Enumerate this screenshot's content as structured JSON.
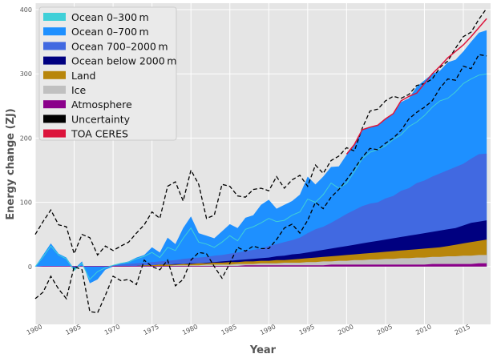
{
  "chart_data": {
    "type": "area",
    "xlabel": "Year",
    "ylabel": "Energy change (ZJ)",
    "xlim": [
      1960,
      2018.5
    ],
    "ylim": [
      -90,
      410
    ],
    "x_ticks": [
      1960,
      1965,
      1970,
      1975,
      1980,
      1985,
      1990,
      1995,
      2000,
      2005,
      2010,
      2015
    ],
    "y_ticks": [
      0,
      100,
      200,
      300,
      400
    ],
    "grid": true,
    "legend_position": "top-left",
    "stack_years": [
      1960,
      1961,
      1962,
      1963,
      1964,
      1965,
      1966,
      1967,
      1968,
      1969,
      1970,
      1971,
      1972,
      1973,
      1974,
      1975,
      1976,
      1977,
      1978,
      1979,
      1980,
      1981,
      1982,
      1983,
      1984,
      1985,
      1986,
      1987,
      1988,
      1989,
      1990,
      1991,
      1992,
      1993,
      1994,
      1995,
      1996,
      1997,
      1998,
      1999,
      2000,
      2001,
      2002,
      2003,
      2004,
      2005,
      2006,
      2007,
      2008,
      2009,
      2010,
      2011,
      2012,
      2013,
      2014,
      2015,
      2016,
      2017,
      2018
    ],
    "series": [
      {
        "name": "Ocean 0–300 m",
        "kind": "area",
        "color": "#40d0d8",
        "values": [
          0,
          15,
          32,
          18,
          12,
          -6,
          5,
          -20,
          -8,
          -2,
          2,
          5,
          7,
          12,
          16,
          22,
          14,
          30,
          25,
          44,
          60,
          38,
          35,
          30,
          38,
          48,
          40,
          58,
          62,
          68,
          75,
          70,
          72,
          80,
          85,
          105,
          100,
          112,
          130,
          122,
          130,
          148,
          168,
          178,
          182,
          188,
          198,
          205,
          218,
          225,
          235,
          248,
          258,
          262,
          272,
          285,
          292,
          298,
          300
        ]
      },
      {
        "name": "Ocean 0–700 m",
        "kind": "area",
        "color": "#1e90ff",
        "values": [
          0,
          18,
          36,
          20,
          14,
          -4,
          8,
          -26,
          -20,
          -5,
          0,
          5,
          8,
          14,
          18,
          30,
          22,
          45,
          35,
          60,
          78,
          52,
          48,
          44,
          55,
          66,
          60,
          76,
          80,
          96,
          104,
          90,
          96,
          102,
          112,
          140,
          128,
          140,
          155,
          156,
          174,
          190,
          213,
          217,
          220,
          230,
          237,
          256,
          262,
          280,
          290,
          300,
          305,
          318,
          322,
          335,
          350,
          364,
          368
        ]
      },
      {
        "name": "Ocean 700–2000 m",
        "kind": "area",
        "color": "#4169e1",
        "values": [
          0,
          0,
          0,
          0,
          0,
          0,
          0,
          0,
          0,
          0,
          2,
          3,
          4,
          5,
          6,
          7,
          8,
          9,
          10,
          12,
          13,
          14,
          15,
          17,
          18,
          20,
          22,
          24,
          26,
          28,
          32,
          35,
          38,
          41,
          45,
          52,
          58,
          62,
          68,
          75,
          82,
          88,
          94,
          98,
          100,
          106,
          110,
          118,
          122,
          130,
          134,
          140,
          145,
          150,
          155,
          160,
          168,
          175,
          176
        ]
      },
      {
        "name": "Ocean below 2000 m",
        "kind": "area",
        "color": "#000080",
        "values": [
          0,
          0,
          0,
          0,
          0,
          0,
          0,
          0,
          0,
          0,
          0,
          1,
          1,
          1,
          2,
          2,
          3,
          3,
          4,
          4,
          5,
          5,
          6,
          7,
          8,
          9,
          10,
          11,
          12,
          13,
          14,
          16,
          17,
          19,
          20,
          22,
          24,
          26,
          28,
          30,
          32,
          34,
          36,
          38,
          40,
          42,
          44,
          46,
          48,
          50,
          52,
          54,
          56,
          58,
          60,
          64,
          68,
          70,
          72
        ]
      },
      {
        "name": "Land",
        "kind": "area",
        "color": "#b8860b",
        "values": [
          0,
          0,
          0,
          0,
          0,
          0,
          0,
          0,
          0,
          0,
          0,
          1,
          1,
          1,
          2,
          2,
          3,
          3,
          3,
          4,
          4,
          5,
          5,
          6,
          6,
          7,
          7,
          8,
          8,
          9,
          9,
          10,
          10,
          11,
          12,
          13,
          14,
          15,
          16,
          17,
          18,
          19,
          20,
          21,
          22,
          23,
          24,
          25,
          26,
          27,
          28,
          29,
          30,
          32,
          34,
          36,
          38,
          40,
          42
        ]
      },
      {
        "name": "Ice",
        "kind": "area",
        "color": "#c0c0c0",
        "values": [
          0,
          0,
          0,
          0,
          0,
          0,
          0,
          0,
          0,
          0,
          0,
          0,
          0,
          1,
          1,
          1,
          1,
          1,
          2,
          2,
          2,
          2,
          3,
          3,
          3,
          3,
          4,
          4,
          4,
          5,
          5,
          5,
          6,
          6,
          6,
          7,
          7,
          8,
          8,
          9,
          9,
          10,
          10,
          11,
          11,
          12,
          12,
          13,
          13,
          14,
          14,
          15,
          15,
          16,
          16,
          17,
          17,
          18,
          18
        ]
      },
      {
        "name": "Atmosphere",
        "kind": "area",
        "color": "#8b008b",
        "values": [
          0,
          1,
          1,
          1,
          1,
          1,
          1,
          1,
          1,
          1,
          1,
          1,
          1,
          1,
          1,
          1,
          1,
          1,
          1,
          1,
          1,
          1,
          1,
          1,
          1,
          1,
          1,
          2,
          2,
          2,
          2,
          2,
          2,
          2,
          2,
          2,
          2,
          2,
          3,
          3,
          3,
          3,
          3,
          3,
          3,
          3,
          3,
          3,
          3,
          3,
          3,
          4,
          4,
          4,
          4,
          4,
          4,
          5,
          5
        ]
      },
      {
        "name": "Uncertainty",
        "kind": "line",
        "color": "#000000",
        "upper": {
          "x": [
            1960,
            1961,
            1962,
            1963,
            1964,
            1965,
            1966,
            1967,
            1968,
            1969,
            1970,
            1971,
            1972,
            1973,
            1974,
            1975,
            1976,
            1977,
            1978,
            1979,
            1980,
            1981,
            1982,
            1983,
            1984,
            1985,
            1986,
            1987,
            1988,
            1989,
            1990,
            1991,
            1992,
            1993,
            1994,
            1995,
            1996,
            1997,
            1998,
            1999,
            2000,
            2001,
            2002,
            2003,
            2004,
            2005,
            2006,
            2007,
            2008,
            2009,
            2010,
            2011,
            2012,
            2013,
            2014,
            2015,
            2016,
            2017,
            2018
          ],
          "values": [
            50,
            70,
            88,
            65,
            62,
            20,
            50,
            45,
            18,
            32,
            25,
            32,
            38,
            52,
            65,
            85,
            75,
            125,
            132,
            102,
            150,
            128,
            75,
            80,
            128,
            125,
            110,
            108,
            120,
            122,
            118,
            140,
            122,
            135,
            142,
            125,
            158,
            145,
            165,
            172,
            185,
            180,
            215,
            242,
            245,
            258,
            265,
            262,
            268,
            282,
            285,
            292,
            310,
            320,
            340,
            358,
            365,
            385,
            402
          ]
        },
        "lower": {
          "x": [
            1960,
            1961,
            1962,
            1963,
            1964,
            1965,
            1966,
            1967,
            1968,
            1969,
            1970,
            1971,
            1972,
            1973,
            1974,
            1975,
            1976,
            1977,
            1978,
            1979,
            1980,
            1981,
            1982,
            1983,
            1984,
            1985,
            1986,
            1987,
            1988,
            1989,
            1990,
            1991,
            1992,
            1993,
            1994,
            1995,
            1996,
            1997,
            1998,
            1999,
            2000,
            2001,
            2002,
            2003,
            2004,
            2005,
            2006,
            2007,
            2008,
            2009,
            2010,
            2011,
            2012,
            2013,
            2014,
            2015,
            2016,
            2017,
            2018
          ],
          "values": [
            -50,
            -40,
            -15,
            -35,
            -50,
            0,
            -5,
            -70,
            -72,
            -45,
            -15,
            -22,
            -20,
            -28,
            10,
            0,
            -5,
            10,
            -30,
            -20,
            10,
            22,
            20,
            0,
            -18,
            5,
            30,
            24,
            32,
            28,
            28,
            42,
            60,
            66,
            52,
            72,
            100,
            90,
            108,
            120,
            135,
            152,
            170,
            184,
            182,
            192,
            200,
            212,
            230,
            240,
            248,
            258,
            278,
            292,
            290,
            312,
            308,
            330,
            328
          ]
        }
      },
      {
        "name": "TOA CERES",
        "kind": "line",
        "color": "#dc143c",
        "x": [
          2000,
          2001,
          2002,
          2003,
          2004,
          2005,
          2006,
          2007,
          2008,
          2009,
          2010,
          2011,
          2012,
          2013,
          2014,
          2015,
          2016,
          2017,
          2018
        ],
        "values": [
          175,
          190,
          213,
          217,
          220,
          230,
          238,
          258,
          265,
          270,
          285,
          300,
          312,
          325,
          335,
          345,
          358,
          372,
          386
        ]
      }
    ]
  }
}
